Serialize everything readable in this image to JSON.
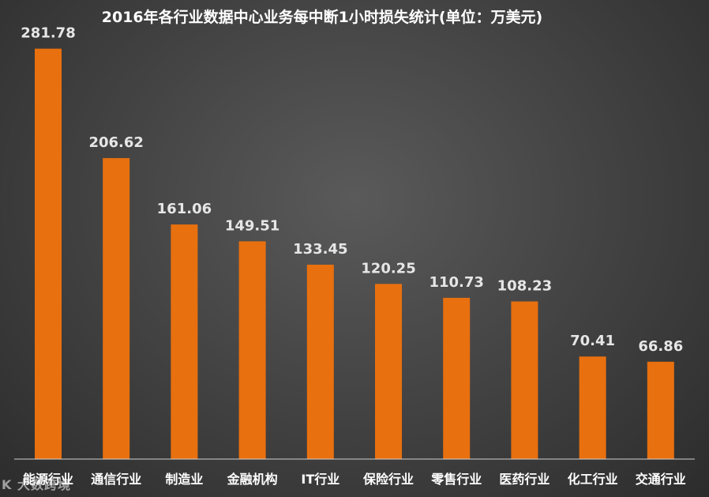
{
  "chart_data": {
    "type": "bar",
    "title": "2016年各行业数据中心业务每中断1小时损失统计(单位：万美元)",
    "categories": [
      "能源行业",
      "通信行业",
      "制造业",
      "金融机构",
      "IT行业",
      "保险行业",
      "零售行业",
      "医药行业",
      "化工行业",
      "交通行业"
    ],
    "values": [
      281.78,
      206.62,
      161.06,
      149.51,
      133.45,
      120.25,
      110.73,
      108.23,
      70.41,
      66.86
    ],
    "data_labels": [
      "281.78",
      "206.62",
      "161.06",
      "149.51",
      "133.45",
      "120.25",
      "110.73",
      "108.23",
      "70.41",
      "66.86"
    ],
    "ylim": [
      0,
      300
    ],
    "grid": false,
    "legend": "none",
    "bar_color": "#e8700f"
  },
  "watermark": {
    "text": "K 大数跨境"
  }
}
